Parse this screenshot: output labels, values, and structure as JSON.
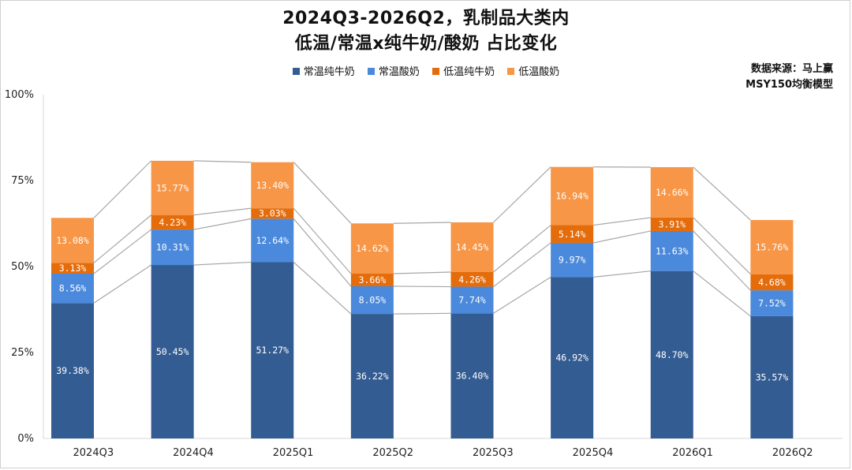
{
  "title_line1": "2024Q3-2026Q2，乳制品大类内",
  "title_line2": "低温/常温x纯牛奶/酸奶 占比变化",
  "source_line1": "数据来源：马上赢",
  "source_line2": "MSY150均衡模型",
  "colors": {
    "常温纯牛奶": "#335C92",
    "常温酸奶": "#4A89DB",
    "低温纯牛奶": "#E46C0A",
    "低温酸奶": "#F79646",
    "connector": "#a6a6a6",
    "grid": "#d9d9d9"
  },
  "chart_data": {
    "type": "bar",
    "stacked": true,
    "categories": [
      "2024Q3",
      "2024Q4",
      "2025Q1",
      "2025Q2",
      "2025Q3",
      "2025Q4",
      "2026Q1",
      "2026Q2"
    ],
    "series": [
      {
        "name": "常温纯牛奶",
        "values": [
          39.38,
          50.45,
          51.27,
          36.22,
          36.4,
          46.92,
          48.7,
          35.57
        ],
        "labels": [
          "39.38%",
          "50.45%",
          "51.27%",
          "36.22%",
          "36.40%",
          "46.92%",
          "48.70%",
          "35.57%"
        ]
      },
      {
        "name": "常温酸奶",
        "values": [
          8.56,
          10.31,
          12.64,
          8.05,
          7.74,
          9.97,
          11.63,
          7.52
        ],
        "labels": [
          "8.56%",
          "10.31%",
          "12.64%",
          "8.05%",
          "7.74%",
          "9.97%",
          "11.63%",
          "7.52%"
        ]
      },
      {
        "name": "低温纯牛奶",
        "values": [
          3.13,
          4.23,
          3.03,
          3.66,
          4.26,
          5.14,
          3.91,
          4.68
        ],
        "labels": [
          "3.13%",
          "4.23%",
          "3.03%",
          "3.66%",
          "4.26%",
          "5.14%",
          "3.91%",
          "4.68%"
        ]
      },
      {
        "name": "低温酸奶",
        "values": [
          13.08,
          15.77,
          13.4,
          14.62,
          14.45,
          16.94,
          14.66,
          15.76
        ],
        "labels": [
          "13.08%",
          "15.77%",
          "13.40%",
          "14.62%",
          "14.45%",
          "16.94%",
          "14.66%",
          "15.76%"
        ]
      }
    ],
    "ylim": [
      0,
      100
    ],
    "yticks": [
      0,
      25,
      50,
      75,
      100
    ],
    "ytick_labels": [
      "0%",
      "25%",
      "50%",
      "75%",
      "100%"
    ],
    "legend_position": "top",
    "grid": false,
    "series_lines": true
  }
}
